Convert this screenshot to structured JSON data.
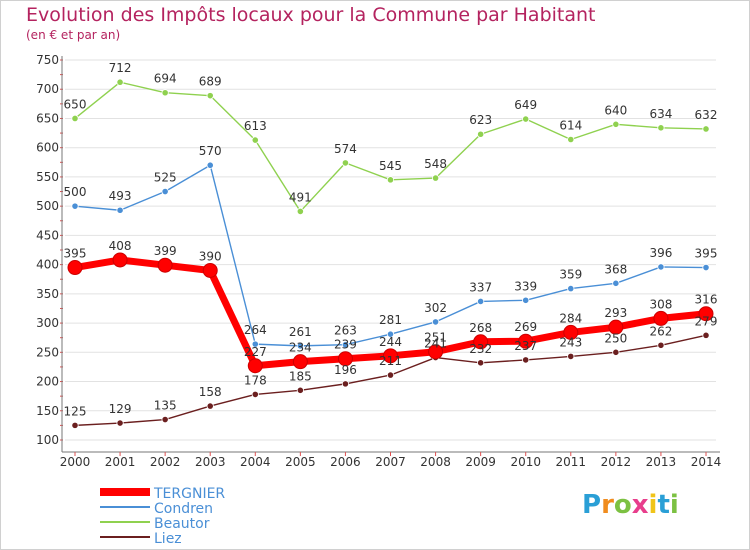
{
  "header": {
    "title": "Evolution des Impôts locaux pour la Commune par Habitant",
    "subtitle": "(en € et par an)"
  },
  "chart_data": {
    "type": "line",
    "title": "Evolution des Impôts locaux pour la Commune par Habitant",
    "subtitle": "(en € et par an)",
    "xlabel": "",
    "ylabel": "",
    "x": [
      "2000",
      "2001",
      "2002",
      "2003",
      "2004",
      "2005",
      "2006",
      "2007",
      "2008",
      "2009",
      "2010",
      "2011",
      "2012",
      "2013",
      "2014"
    ],
    "ylim": [
      100,
      750
    ],
    "yticks": [
      100,
      150,
      200,
      250,
      300,
      350,
      400,
      450,
      500,
      550,
      600,
      650,
      700,
      750
    ],
    "grid": "horizontal",
    "legend": "bottom-left",
    "series": [
      {
        "name": "TERGNIER",
        "color": "#ff0000",
        "values": [
          395,
          408,
          399,
          390,
          227,
          234,
          239,
          244,
          251,
          268,
          269,
          284,
          293,
          308,
          316
        ]
      },
      {
        "name": "Condren",
        "color": "#4a8fd6",
        "values": [
          500,
          493,
          525,
          570,
          264,
          261,
          263,
          281,
          302,
          337,
          339,
          359,
          368,
          396,
          395
        ]
      },
      {
        "name": "Beautor",
        "color": "#8fd14f",
        "values": [
          650,
          712,
          694,
          689,
          613,
          491,
          574,
          545,
          548,
          623,
          649,
          614,
          640,
          634,
          632
        ]
      },
      {
        "name": "Liez",
        "color": "#6b1f1f",
        "values": [
          125,
          129,
          135,
          158,
          178,
          185,
          196,
          211,
          241,
          232,
          237,
          243,
          250,
          262,
          279
        ]
      }
    ]
  },
  "logo": {
    "letters": [
      "P",
      "r",
      "o",
      "x",
      "i",
      "t",
      "i"
    ],
    "colors": [
      "#2a9fd6",
      "#f08c1e",
      "#7cc142",
      "#e83e8c",
      "#f0c419",
      "#2a9fd6",
      "#7cc142"
    ]
  }
}
